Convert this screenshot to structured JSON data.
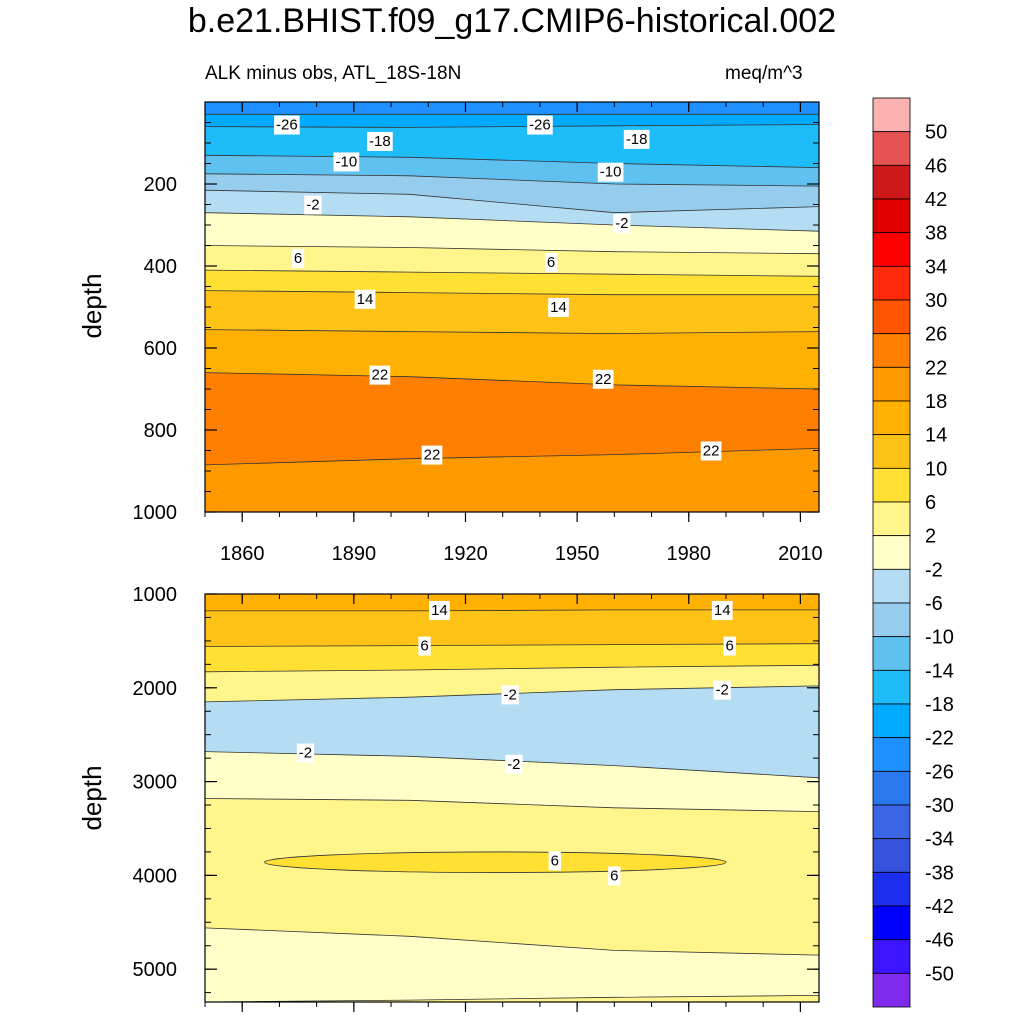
{
  "chart_data": [
    {
      "type": "contour",
      "title": "b.e21.BHIST.f09_g17.CMIP6-historical.002",
      "subtitle_left": "ALK minus obs, ATL_18S-18N",
      "subtitle_right": "meq/m^3",
      "ylabel": "depth",
      "xlabel": "",
      "xlim": [
        1850,
        2015
      ],
      "ylim": [
        1000,
        0
      ],
      "xticks": [
        1860,
        1890,
        1920,
        1950,
        1980,
        2010
      ],
      "yticks": [
        200,
        400,
        600,
        800,
        1000
      ],
      "bands": [
        {
          "level": -26,
          "top": [
            0,
            0,
            0,
            0
          ],
          "bottom": [
            30,
            30,
            30,
            30
          ]
        },
        {
          "level": -22,
          "top": [
            30,
            30,
            30,
            30
          ],
          "bottom": [
            60,
            62,
            58,
            55
          ]
        },
        {
          "level": -18,
          "top": [
            60,
            62,
            58,
            55
          ],
          "bottom": [
            130,
            135,
            150,
            160
          ]
        },
        {
          "level": -14,
          "top": [
            130,
            135,
            150,
            160
          ],
          "bottom": [
            175,
            180,
            200,
            205
          ]
        },
        {
          "level": -10,
          "top": [
            175,
            180,
            200,
            205
          ],
          "bottom": [
            215,
            225,
            270,
            255
          ]
        },
        {
          "level": -6,
          "top": [
            215,
            225,
            270,
            255
          ],
          "bottom": [
            270,
            280,
            300,
            315
          ]
        },
        {
          "level": -2,
          "top": [
            270,
            280,
            300,
            315
          ],
          "bottom": [
            350,
            355,
            365,
            370
          ]
        },
        {
          "level": 2,
          "top": [
            350,
            355,
            365,
            370
          ],
          "bottom": [
            410,
            415,
            420,
            425
          ]
        },
        {
          "level": 6,
          "top": [
            410,
            415,
            420,
            425
          ],
          "bottom": [
            460,
            465,
            470,
            470
          ]
        },
        {
          "level": 10,
          "top": [
            460,
            465,
            470,
            470
          ],
          "bottom": [
            555,
            560,
            565,
            560
          ]
        },
        {
          "level": 14,
          "top": [
            555,
            560,
            565,
            560
          ],
          "bottom": [
            660,
            670,
            690,
            700
          ]
        },
        {
          "level": 22,
          "top": [
            660,
            670,
            690,
            700
          ],
          "bottom": [
            885,
            870,
            860,
            845
          ]
        },
        {
          "level": 18,
          "top": [
            885,
            870,
            860,
            845
          ],
          "bottom": [
            1000,
            1000,
            1000,
            1000
          ]
        }
      ],
      "contour_labels": [
        {
          "text": "-26",
          "x": 1872,
          "y": 55
        },
        {
          "text": "-18",
          "x": 1897,
          "y": 95
        },
        {
          "text": "-26",
          "x": 1940,
          "y": 55
        },
        {
          "text": "-18",
          "x": 1966,
          "y": 90
        },
        {
          "text": "-10",
          "x": 1888,
          "y": 145
        },
        {
          "text": "-10",
          "x": 1959,
          "y": 170
        },
        {
          "text": "-2",
          "x": 1879,
          "y": 250
        },
        {
          "text": "-2",
          "x": 1962,
          "y": 295
        },
        {
          "text": "6",
          "x": 1875,
          "y": 380
        },
        {
          "text": "6",
          "x": 1943,
          "y": 390
        },
        {
          "text": "14",
          "x": 1893,
          "y": 480
        },
        {
          "text": "14",
          "x": 1945,
          "y": 500
        },
        {
          "text": "22",
          "x": 1897,
          "y": 665
        },
        {
          "text": "22",
          "x": 1957,
          "y": 675
        },
        {
          "text": "22",
          "x": 1911,
          "y": 860
        },
        {
          "text": "22",
          "x": 1986,
          "y": 850
        }
      ]
    },
    {
      "type": "contour",
      "ylabel": "depth",
      "xlabel": "",
      "xlim": [
        1850,
        2015
      ],
      "ylim": [
        5350,
        1000
      ],
      "yticks": [
        1000,
        2000,
        3000,
        4000,
        5000
      ],
      "bands": [
        {
          "level": 14,
          "top": [
            1000,
            1000,
            1000,
            1000
          ],
          "bottom": [
            1180,
            1180,
            1170,
            1170
          ]
        },
        {
          "level": 10,
          "top": [
            1180,
            1180,
            1170,
            1170
          ],
          "bottom": [
            1560,
            1550,
            1540,
            1530
          ]
        },
        {
          "level": 6,
          "top": [
            1560,
            1550,
            1540,
            1530
          ],
          "bottom": [
            1830,
            1810,
            1780,
            1760
          ]
        },
        {
          "level": 2,
          "top": [
            1830,
            1810,
            1780,
            1760
          ],
          "bottom": [
            2150,
            2100,
            2020,
            1980
          ]
        },
        {
          "level": -6,
          "top": [
            2150,
            2100,
            2020,
            1980
          ],
          "bottom": [
            2680,
            2730,
            2830,
            2960
          ]
        },
        {
          "level": -2,
          "top": [
            2680,
            2730,
            2830,
            2960
          ],
          "bottom": [
            3180,
            3200,
            3280,
            3320
          ]
        },
        {
          "level": 2,
          "top": [
            3180,
            3200,
            3280,
            3320
          ],
          "bottom": [
            4560,
            4650,
            4800,
            4850
          ]
        },
        {
          "level": -2,
          "top": [
            4560,
            4650,
            4800,
            4850
          ],
          "bottom": [
            5350,
            5330,
            5300,
            5280
          ]
        },
        {
          "level": 2,
          "top": [
            5350,
            5330,
            5300,
            5280
          ],
          "bottom": [
            5350,
            5350,
            5350,
            5350
          ]
        }
      ],
      "patches": [
        {
          "level": 6,
          "x": [
            1866,
            1990
          ],
          "y": 3860,
          "half_height": 110
        }
      ],
      "contour_labels": [
        {
          "text": "14",
          "x": 1913,
          "y": 1170
        },
        {
          "text": "14",
          "x": 1989,
          "y": 1170
        },
        {
          "text": "6",
          "x": 1909,
          "y": 1550
        },
        {
          "text": "6",
          "x": 1991,
          "y": 1550
        },
        {
          "text": "-2",
          "x": 1932,
          "y": 2070
        },
        {
          "text": "-2",
          "x": 1989,
          "y": 2020
        },
        {
          "text": "-2",
          "x": 1877,
          "y": 2690
        },
        {
          "text": "-2",
          "x": 1933,
          "y": 2810
        },
        {
          "text": "6",
          "x": 1944,
          "y": 3840
        },
        {
          "text": "6",
          "x": 1960,
          "y": 4000
        }
      ]
    }
  ],
  "colorbar": {
    "labels": [
      "50",
      "46",
      "42",
      "38",
      "34",
      "30",
      "26",
      "22",
      "18",
      "14",
      "10",
      "6",
      "2",
      "-2",
      "-6",
      "-10",
      "-14",
      "-18",
      "-22",
      "-26",
      "-30",
      "-34",
      "-38",
      "-42",
      "-46",
      "-50"
    ],
    "colors": [
      "#fdb2b2",
      "#e55353",
      "#cd1919",
      "#e10000",
      "#ff0000",
      "#ff2a0a",
      "#ff5500",
      "#ff7f00",
      "#ff9900",
      "#ffb000",
      "#ffc318",
      "#ffe033",
      "#fff58a",
      "#ffffc8",
      "#b4dcf2",
      "#96cdee",
      "#5fc1f0",
      "#1fbcfa",
      "#00aaff",
      "#1e90ff",
      "#2a78ee",
      "#3a66e6",
      "#3454dd",
      "#1c2eee",
      "#0000ff",
      "#3c14ff",
      "#7f2aed"
    ]
  }
}
